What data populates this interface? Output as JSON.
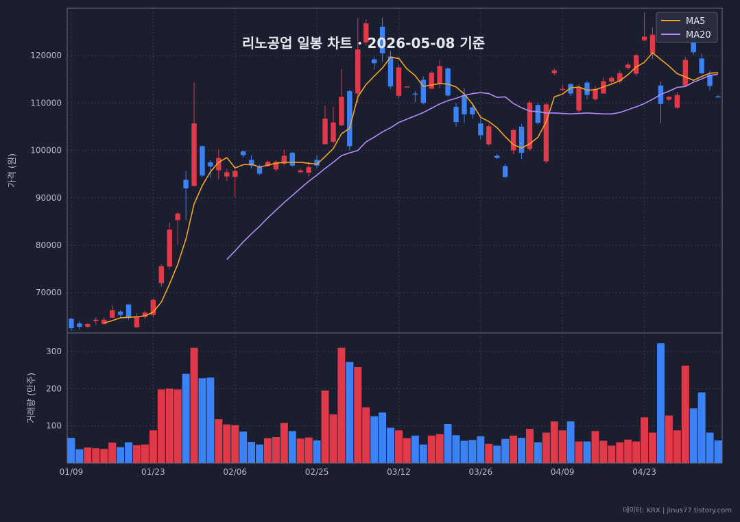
{
  "chart_data": {
    "type": "candlestick",
    "title": "리노공업 일봉 차트 · 2026-05-08 기준",
    "price_ylabel": "가격 (원)",
    "volume_ylabel": "거래량 (만주)",
    "credit": "데이터: KRX | jinus77.tistory.com",
    "legend": {
      "placement": "top-right",
      "items": [
        {
          "name": "MA5",
          "color": "#f5a623"
        },
        {
          "name": "MA20",
          "color": "#b48cff"
        }
      ]
    },
    "colors": {
      "up": "#e03a4a",
      "down": "#3b82f6"
    },
    "price_ylim": [
      61500,
      130000
    ],
    "price_yticks": [
      70000,
      80000,
      90000,
      100000,
      110000,
      120000
    ],
    "volume_ylim": [
      0,
      350
    ],
    "volume_yticks": [
      100,
      200,
      300
    ],
    "xtick_labels": [
      {
        "index": 0,
        "label": "01/09"
      },
      {
        "index": 10,
        "label": "01/23"
      },
      {
        "index": 20,
        "label": "02/06"
      },
      {
        "index": 30,
        "label": "02/25"
      },
      {
        "index": 40,
        "label": "03/12"
      },
      {
        "index": 50,
        "label": "03/26"
      },
      {
        "index": 60,
        "label": "04/09"
      },
      {
        "index": 70,
        "label": "04/23"
      }
    ],
    "candles": [
      [
        64500,
        62500,
        64700,
        62000
      ],
      [
        63500,
        62800,
        64000,
        62300
      ],
      [
        62800,
        63400,
        63600,
        62600
      ],
      [
        64000,
        64300,
        64800,
        63200
      ],
      [
        63400,
        64300,
        64900,
        63200
      ],
      [
        64700,
        66300,
        67300,
        64700
      ],
      [
        66000,
        65300,
        66300,
        64800
      ],
      [
        67500,
        64800,
        67500,
        64300
      ],
      [
        62700,
        65000,
        65600,
        62600
      ],
      [
        64900,
        65800,
        66200,
        64400
      ],
      [
        65300,
        68500,
        68800,
        64800
      ],
      [
        72000,
        75600,
        76000,
        71200
      ],
      [
        75500,
        83300,
        84800,
        75000
      ],
      [
        85300,
        86700,
        86900,
        80200
      ],
      [
        93800,
        92000,
        95700,
        85300
      ],
      [
        92500,
        105700,
        114300,
        92400
      ],
      [
        100900,
        94700,
        101000,
        94400
      ],
      [
        97500,
        96600,
        97900,
        94200
      ],
      [
        95800,
        98400,
        100200,
        94000
      ],
      [
        94500,
        95400,
        96100,
        93600
      ],
      [
        94400,
        95700,
        96100,
        90100
      ],
      [
        99800,
        99000,
        99900,
        98500
      ],
      [
        98000,
        96800,
        99000,
        96200
      ],
      [
        96500,
        95100,
        97100,
        94800
      ],
      [
        96700,
        97600,
        98000,
        96500
      ],
      [
        96000,
        97600,
        97900,
        95600
      ],
      [
        97200,
        98900,
        100200,
        96800
      ],
      [
        99500,
        96800,
        99700,
        96600
      ],
      [
        95400,
        95800,
        96200,
        95200
      ],
      [
        95300,
        96500,
        97600,
        94500
      ],
      [
        98000,
        96800,
        99000,
        96300
      ],
      [
        101300,
        106700,
        109500,
        101300
      ],
      [
        101800,
        105900,
        109200,
        101500
      ],
      [
        105300,
        111300,
        117200,
        105100
      ],
      [
        112500,
        100900,
        112800,
        100000
      ],
      [
        112000,
        121300,
        127900,
        110000
      ],
      [
        122800,
        126800,
        127700,
        122200
      ],
      [
        119200,
        118400,
        119800,
        117100
      ],
      [
        126100,
        120500,
        128000,
        118700
      ],
      [
        119800,
        113500,
        121000,
        113000
      ],
      [
        111500,
        117500,
        118100,
        111000
      ],
      [
        113300,
        113500,
        113500,
        113300
      ],
      [
        112000,
        111800,
        112500,
        110200
      ],
      [
        114900,
        110000,
        115700,
        109700
      ],
      [
        113000,
        116400,
        116700,
        113000
      ],
      [
        114000,
        117800,
        119100,
        113100
      ],
      [
        117300,
        111600,
        117500,
        111400
      ],
      [
        109200,
        106000,
        110000,
        105000
      ],
      [
        111700,
        107600,
        113200,
        105800
      ],
      [
        109100,
        107600,
        110100,
        106700
      ],
      [
        105700,
        103200,
        106700,
        102300
      ],
      [
        101300,
        105100,
        105600,
        101000
      ],
      [
        98900,
        98400,
        99300,
        98200
      ],
      [
        96700,
        94400,
        97200,
        94100
      ],
      [
        100000,
        104300,
        104500,
        99200
      ],
      [
        105000,
        99500,
        105600,
        98200
      ],
      [
        100300,
        110100,
        110600,
        99900
      ],
      [
        109600,
        105800,
        110000,
        105400
      ],
      [
        97700,
        109700,
        110100,
        97300
      ],
      [
        116300,
        116900,
        117300,
        115900
      ],
      [
        113000,
        113000,
        113800,
        112500
      ],
      [
        114000,
        112000,
        114200,
        111500
      ],
      [
        108400,
        113300,
        113900,
        108000
      ],
      [
        114300,
        111700,
        114600,
        110800
      ],
      [
        110800,
        113000,
        113600,
        110400
      ],
      [
        112000,
        114600,
        115400,
        112000
      ],
      [
        114500,
        115300,
        115700,
        114000
      ],
      [
        114600,
        116300,
        116800,
        114100
      ],
      [
        117400,
        118100,
        118500,
        117100
      ],
      [
        116200,
        120100,
        120400,
        115600
      ],
      [
        123200,
        124000,
        129000,
        123000
      ],
      [
        120500,
        124400,
        126000,
        119300
      ],
      [
        113700,
        109800,
        114500,
        105700
      ],
      [
        110700,
        111300,
        111500,
        110400
      ],
      [
        109000,
        111700,
        112300,
        108700
      ],
      [
        113700,
        119100,
        119700,
        113400
      ],
      [
        124200,
        120700,
        126900,
        120200
      ],
      [
        119400,
        116300,
        120400,
        116000
      ],
      [
        116000,
        113600,
        116800,
        112700
      ],
      [
        111400,
        111300,
        111700,
        111100
      ]
    ],
    "volumes": [
      68,
      37,
      42,
      40,
      38,
      55,
      43,
      56,
      48,
      50,
      88,
      198,
      200,
      198,
      240,
      310,
      228,
      230,
      118,
      104,
      102,
      85,
      57,
      50,
      67,
      70,
      108,
      86,
      66,
      69,
      61,
      195,
      131,
      310,
      272,
      258,
      150,
      126,
      136,
      95,
      88,
      67,
      74,
      50,
      74,
      78,
      105,
      75,
      60,
      62,
      72,
      52,
      47,
      65,
      74,
      68,
      92,
      56,
      82,
      112,
      88,
      112,
      58,
      58,
      86,
      60,
      47,
      56,
      63,
      58,
      123,
      82,
      322,
      128,
      88,
      262,
      147,
      190,
      82,
      61
    ],
    "ma5": [
      null,
      null,
      null,
      null,
      63600,
      64100,
      64700,
      64800,
      64900,
      65100,
      65900,
      68000,
      71800,
      76000,
      81300,
      88700,
      92600,
      95500,
      97500,
      98500,
      96300,
      97000,
      97100,
      96500,
      96900,
      97300,
      97500,
      97500,
      97500,
      97300,
      97100,
      98700,
      100400,
      103500,
      104700,
      111300,
      113900,
      115700,
      117400,
      119700,
      119400,
      117200,
      115800,
      113500,
      113800,
      114100,
      114000,
      113400,
      111900,
      109800,
      107000,
      106100,
      104800,
      102900,
      101200,
      100500,
      101400,
      102800,
      106000,
      111300,
      111900,
      113200,
      113400,
      112700,
      112800,
      113400,
      114000,
      114700,
      116000,
      117600,
      118600,
      120600,
      119200,
      117800,
      116200,
      115500,
      114800,
      115600,
      116300,
      116400
    ],
    "ma20": [
      null,
      null,
      null,
      null,
      null,
      null,
      null,
      null,
      null,
      null,
      null,
      null,
      null,
      null,
      null,
      null,
      null,
      null,
      null,
      77000,
      78800,
      80700,
      82400,
      84000,
      85800,
      87400,
      89000,
      90500,
      92000,
      93500,
      94800,
      96200,
      97500,
      98900,
      99500,
      100000,
      101800,
      102800,
      103900,
      104800,
      105900,
      106600,
      107300,
      108000,
      108900,
      109800,
      110500,
      111000,
      111600,
      112000,
      112200,
      112000,
      111200,
      111300,
      109900,
      109000,
      108300,
      108200,
      107900,
      107900,
      107800,
      107700,
      107800,
      107900,
      107800,
      107700,
      107700,
      108000,
      108600,
      109200,
      109900,
      110800,
      111800,
      112500,
      113300,
      113500,
      114400,
      115100,
      115800,
      116100
    ]
  }
}
